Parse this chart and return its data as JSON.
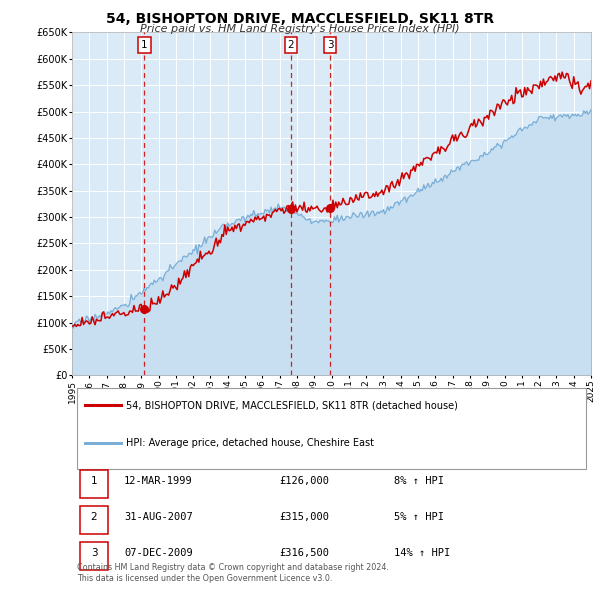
{
  "title": "54, BISHOPTON DRIVE, MACCLESFIELD, SK11 8TR",
  "subtitle": "Price paid vs. HM Land Registry's House Price Index (HPI)",
  "x_start": 1995,
  "x_end": 2025,
  "y_min": 0,
  "y_max": 650000,
  "y_ticks": [
    0,
    50000,
    100000,
    150000,
    200000,
    250000,
    300000,
    350000,
    400000,
    450000,
    500000,
    550000,
    600000,
    650000
  ],
  "y_tick_labels": [
    "£0",
    "£50K",
    "£100K",
    "£150K",
    "£200K",
    "£250K",
    "£300K",
    "£350K",
    "£400K",
    "£450K",
    "£500K",
    "£550K",
    "£600K",
    "£650K"
  ],
  "property_color": "#cc0000",
  "hpi_color": "#7aaed6",
  "hpi_fill_color": "#c8dff2",
  "plot_bg_color": "#dbeaf7",
  "grid_color": "#ffffff",
  "legend_label_property": "54, BISHOPTON DRIVE, MACCLESFIELD, SK11 8TR (detached house)",
  "legend_label_hpi": "HPI: Average price, detached house, Cheshire East",
  "transactions": [
    {
      "num": 1,
      "date": "12-MAR-1999",
      "year_f": 1999.19,
      "price": 126000,
      "pct": "8%",
      "dir": "↑"
    },
    {
      "num": 2,
      "date": "31-AUG-2007",
      "year_f": 2007.66,
      "price": 315000,
      "pct": "5%",
      "dir": "↑"
    },
    {
      "num": 3,
      "date": "07-DEC-2009",
      "year_f": 2009.92,
      "price": 316500,
      "pct": "14%",
      "dir": "↑"
    }
  ],
  "footer_line1": "Contains HM Land Registry data © Crown copyright and database right 2024.",
  "footer_line2": "This data is licensed under the Open Government Licence v3.0.",
  "x_tick_years": [
    1995,
    1996,
    1997,
    1998,
    1999,
    2000,
    2001,
    2002,
    2003,
    2004,
    2005,
    2006,
    2007,
    2008,
    2009,
    2010,
    2011,
    2012,
    2013,
    2014,
    2015,
    2016,
    2017,
    2018,
    2019,
    2020,
    2021,
    2022,
    2023,
    2024,
    2025
  ]
}
